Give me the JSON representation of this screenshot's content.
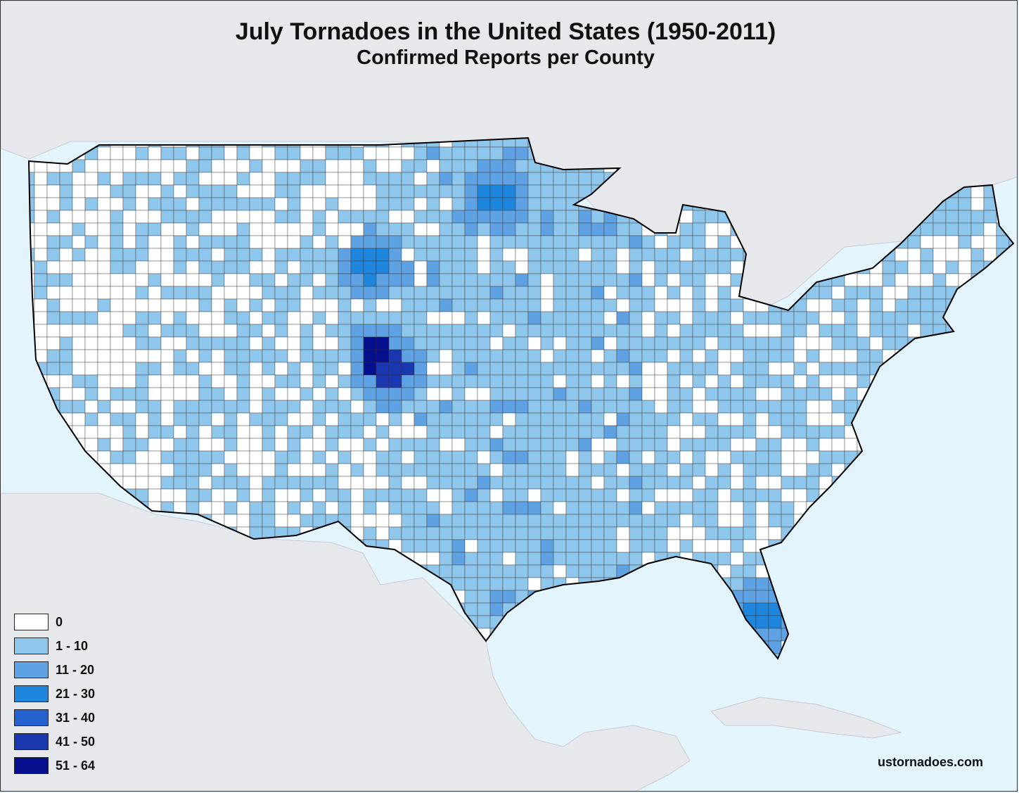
{
  "header": {
    "title": "July Tornadoes in the United States (1950-2011)",
    "subtitle": "Confirmed Reports per County"
  },
  "colors": {
    "ocean": "#e4f4fd",
    "land_foreign": "#e6e8ec",
    "county_border": "#222222",
    "state_border": "#000000"
  },
  "legend": {
    "items": [
      {
        "label": "0",
        "color": "#ffffff"
      },
      {
        "label": "1 - 10",
        "color": "#8fc6ec"
      },
      {
        "label": "11 - 20",
        "color": "#5ea2e4"
      },
      {
        "label": "21 - 30",
        "color": "#1f86de"
      },
      {
        "label": "31 - 40",
        "color": "#2560cf"
      },
      {
        "label": "41 - 50",
        "color": "#1a37b0"
      },
      {
        "label": "51 - 64",
        "color": "#06108e"
      }
    ]
  },
  "credit": "ustornadoes.com"
}
